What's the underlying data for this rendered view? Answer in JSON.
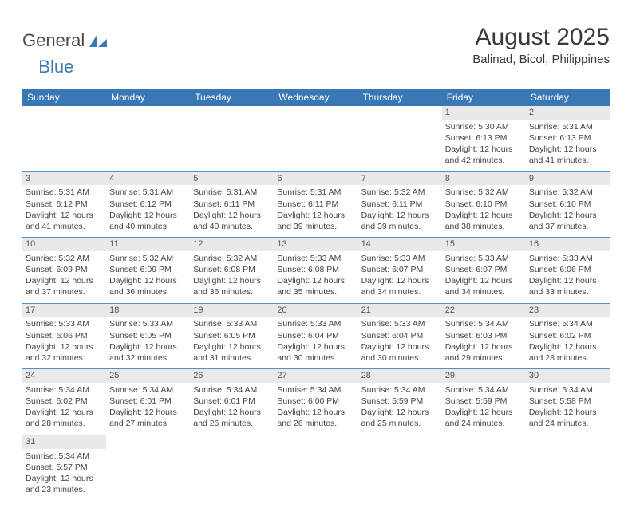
{
  "logo": {
    "general": "General",
    "blue": "Blue"
  },
  "title": "August 2025",
  "location": "Balinad, Bicol, Philippines",
  "colors": {
    "header_bg": "#3a78b5",
    "header_text": "#ffffff",
    "daynum_bg": "#e9e9e9",
    "row_border": "#5a8fc4",
    "text": "#444444"
  },
  "weekdays": [
    "Sunday",
    "Monday",
    "Tuesday",
    "Wednesday",
    "Thursday",
    "Friday",
    "Saturday"
  ],
  "weeks": [
    [
      {
        "empty": true
      },
      {
        "empty": true
      },
      {
        "empty": true
      },
      {
        "empty": true
      },
      {
        "empty": true
      },
      {
        "day": "1",
        "sunrise": "Sunrise: 5:30 AM",
        "sunset": "Sunset: 6:13 PM",
        "day1": "Daylight: 12 hours",
        "day2": "and 42 minutes."
      },
      {
        "day": "2",
        "sunrise": "Sunrise: 5:31 AM",
        "sunset": "Sunset: 6:13 PM",
        "day1": "Daylight: 12 hours",
        "day2": "and 41 minutes."
      }
    ],
    [
      {
        "day": "3",
        "sunrise": "Sunrise: 5:31 AM",
        "sunset": "Sunset: 6:12 PM",
        "day1": "Daylight: 12 hours",
        "day2": "and 41 minutes."
      },
      {
        "day": "4",
        "sunrise": "Sunrise: 5:31 AM",
        "sunset": "Sunset: 6:12 PM",
        "day1": "Daylight: 12 hours",
        "day2": "and 40 minutes."
      },
      {
        "day": "5",
        "sunrise": "Sunrise: 5:31 AM",
        "sunset": "Sunset: 6:11 PM",
        "day1": "Daylight: 12 hours",
        "day2": "and 40 minutes."
      },
      {
        "day": "6",
        "sunrise": "Sunrise: 5:31 AM",
        "sunset": "Sunset: 6:11 PM",
        "day1": "Daylight: 12 hours",
        "day2": "and 39 minutes."
      },
      {
        "day": "7",
        "sunrise": "Sunrise: 5:32 AM",
        "sunset": "Sunset: 6:11 PM",
        "day1": "Daylight: 12 hours",
        "day2": "and 39 minutes."
      },
      {
        "day": "8",
        "sunrise": "Sunrise: 5:32 AM",
        "sunset": "Sunset: 6:10 PM",
        "day1": "Daylight: 12 hours",
        "day2": "and 38 minutes."
      },
      {
        "day": "9",
        "sunrise": "Sunrise: 5:32 AM",
        "sunset": "Sunset: 6:10 PM",
        "day1": "Daylight: 12 hours",
        "day2": "and 37 minutes."
      }
    ],
    [
      {
        "day": "10",
        "sunrise": "Sunrise: 5:32 AM",
        "sunset": "Sunset: 6:09 PM",
        "day1": "Daylight: 12 hours",
        "day2": "and 37 minutes."
      },
      {
        "day": "11",
        "sunrise": "Sunrise: 5:32 AM",
        "sunset": "Sunset: 6:09 PM",
        "day1": "Daylight: 12 hours",
        "day2": "and 36 minutes."
      },
      {
        "day": "12",
        "sunrise": "Sunrise: 5:32 AM",
        "sunset": "Sunset: 6:08 PM",
        "day1": "Daylight: 12 hours",
        "day2": "and 36 minutes."
      },
      {
        "day": "13",
        "sunrise": "Sunrise: 5:33 AM",
        "sunset": "Sunset: 6:08 PM",
        "day1": "Daylight: 12 hours",
        "day2": "and 35 minutes."
      },
      {
        "day": "14",
        "sunrise": "Sunrise: 5:33 AM",
        "sunset": "Sunset: 6:07 PM",
        "day1": "Daylight: 12 hours",
        "day2": "and 34 minutes."
      },
      {
        "day": "15",
        "sunrise": "Sunrise: 5:33 AM",
        "sunset": "Sunset: 6:07 PM",
        "day1": "Daylight: 12 hours",
        "day2": "and 34 minutes."
      },
      {
        "day": "16",
        "sunrise": "Sunrise: 5:33 AM",
        "sunset": "Sunset: 6:06 PM",
        "day1": "Daylight: 12 hours",
        "day2": "and 33 minutes."
      }
    ],
    [
      {
        "day": "17",
        "sunrise": "Sunrise: 5:33 AM",
        "sunset": "Sunset: 6:06 PM",
        "day1": "Daylight: 12 hours",
        "day2": "and 32 minutes."
      },
      {
        "day": "18",
        "sunrise": "Sunrise: 5:33 AM",
        "sunset": "Sunset: 6:05 PM",
        "day1": "Daylight: 12 hours",
        "day2": "and 32 minutes."
      },
      {
        "day": "19",
        "sunrise": "Sunrise: 5:33 AM",
        "sunset": "Sunset: 6:05 PM",
        "day1": "Daylight: 12 hours",
        "day2": "and 31 minutes."
      },
      {
        "day": "20",
        "sunrise": "Sunrise: 5:33 AM",
        "sunset": "Sunset: 6:04 PM",
        "day1": "Daylight: 12 hours",
        "day2": "and 30 minutes."
      },
      {
        "day": "21",
        "sunrise": "Sunrise: 5:33 AM",
        "sunset": "Sunset: 6:04 PM",
        "day1": "Daylight: 12 hours",
        "day2": "and 30 minutes."
      },
      {
        "day": "22",
        "sunrise": "Sunrise: 5:34 AM",
        "sunset": "Sunset: 6:03 PM",
        "day1": "Daylight: 12 hours",
        "day2": "and 29 minutes."
      },
      {
        "day": "23",
        "sunrise": "Sunrise: 5:34 AM",
        "sunset": "Sunset: 6:02 PM",
        "day1": "Daylight: 12 hours",
        "day2": "and 28 minutes."
      }
    ],
    [
      {
        "day": "24",
        "sunrise": "Sunrise: 5:34 AM",
        "sunset": "Sunset: 6:02 PM",
        "day1": "Daylight: 12 hours",
        "day2": "and 28 minutes."
      },
      {
        "day": "25",
        "sunrise": "Sunrise: 5:34 AM",
        "sunset": "Sunset: 6:01 PM",
        "day1": "Daylight: 12 hours",
        "day2": "and 27 minutes."
      },
      {
        "day": "26",
        "sunrise": "Sunrise: 5:34 AM",
        "sunset": "Sunset: 6:01 PM",
        "day1": "Daylight: 12 hours",
        "day2": "and 26 minutes."
      },
      {
        "day": "27",
        "sunrise": "Sunrise: 5:34 AM",
        "sunset": "Sunset: 6:00 PM",
        "day1": "Daylight: 12 hours",
        "day2": "and 26 minutes."
      },
      {
        "day": "28",
        "sunrise": "Sunrise: 5:34 AM",
        "sunset": "Sunset: 5:59 PM",
        "day1": "Daylight: 12 hours",
        "day2": "and 25 minutes."
      },
      {
        "day": "29",
        "sunrise": "Sunrise: 5:34 AM",
        "sunset": "Sunset: 5:59 PM",
        "day1": "Daylight: 12 hours",
        "day2": "and 24 minutes."
      },
      {
        "day": "30",
        "sunrise": "Sunrise: 5:34 AM",
        "sunset": "Sunset: 5:58 PM",
        "day1": "Daylight: 12 hours",
        "day2": "and 24 minutes."
      }
    ],
    [
      {
        "day": "31",
        "sunrise": "Sunrise: 5:34 AM",
        "sunset": "Sunset: 5:57 PM",
        "day1": "Daylight: 12 hours",
        "day2": "and 23 minutes."
      },
      {
        "empty": true
      },
      {
        "empty": true
      },
      {
        "empty": true
      },
      {
        "empty": true
      },
      {
        "empty": true
      },
      {
        "empty": true
      }
    ]
  ]
}
